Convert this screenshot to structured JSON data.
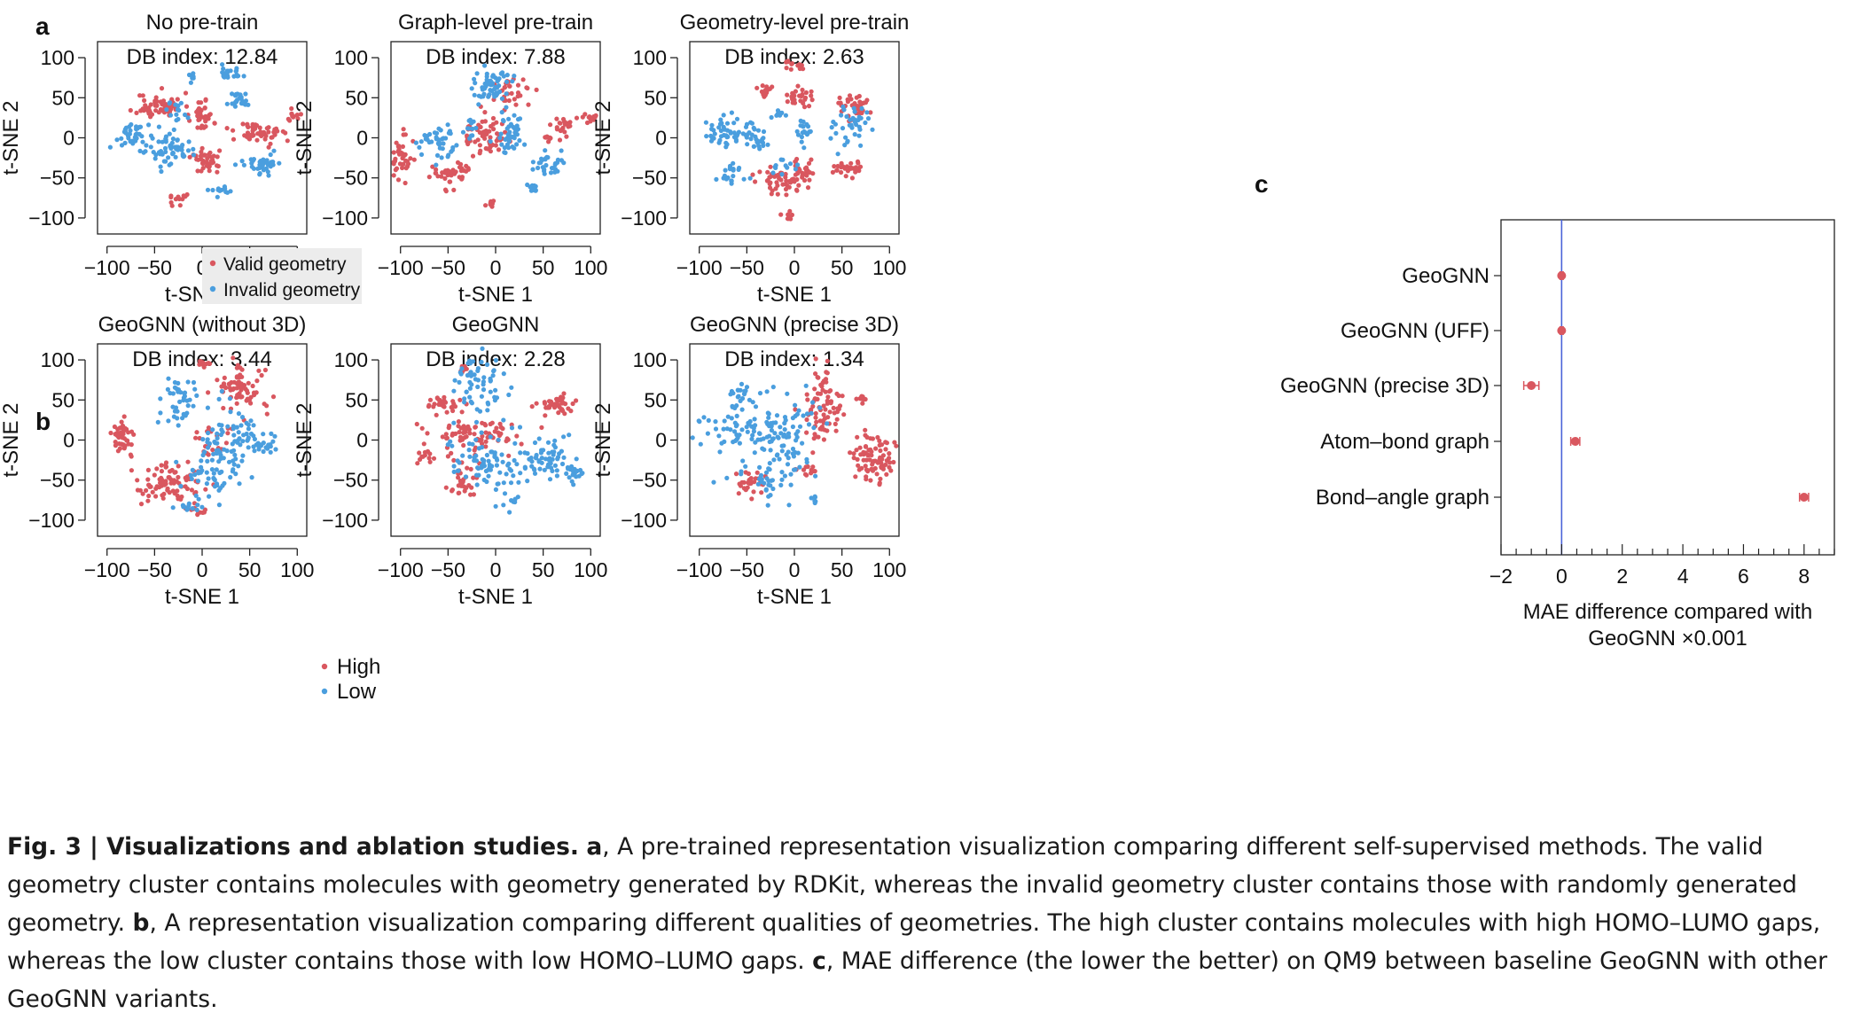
{
  "panel_labels": [
    "a",
    "b",
    "c"
  ],
  "legends": {
    "a": [
      "Valid geometry",
      "Invalid geometry"
    ],
    "b": [
      "High",
      "Low"
    ]
  },
  "colors": {
    "red": "#d9575f",
    "blue": "#4a9ede",
    "zero_line": "#4a63d8",
    "legend_bg": "#ececec"
  },
  "chart_data": [
    {
      "type": "scatter",
      "panel": "a",
      "title": "No pre-train",
      "annotation": "DB index: 12.84",
      "xlabel": "t-SNE 1",
      "ylabel": "t-SNE 2",
      "xlim": [
        -110,
        110
      ],
      "ylim": [
        -120,
        120
      ],
      "xticks": [
        "−100",
        "−50",
        "0",
        "50",
        "100"
      ],
      "yticks": [
        "100",
        "50",
        "0",
        "−50",
        "−100"
      ],
      "legend_position": "bottom-center",
      "seed": 11,
      "clusters": [
        {
          "series": "Valid geometry",
          "cx": -45,
          "cy": 40,
          "sx": 12,
          "sy": 8,
          "n": 60
        },
        {
          "series": "Valid geometry",
          "cx": 0,
          "cy": 28,
          "sx": 6,
          "sy": 10,
          "n": 35
        },
        {
          "series": "Valid geometry",
          "cx": 60,
          "cy": 5,
          "sx": 12,
          "sy": 8,
          "n": 50
        },
        {
          "series": "Valid geometry",
          "cx": 5,
          "cy": -28,
          "sx": 10,
          "sy": 8,
          "n": 40
        },
        {
          "series": "Valid geometry",
          "cx": 97,
          "cy": 30,
          "sx": 4,
          "sy": 4,
          "n": 12
        },
        {
          "series": "Valid geometry",
          "cx": -25,
          "cy": -75,
          "sx": 6,
          "sy": 4,
          "n": 12
        },
        {
          "series": "Invalid geometry",
          "cx": -75,
          "cy": 2,
          "sx": 8,
          "sy": 8,
          "n": 35
        },
        {
          "series": "Invalid geometry",
          "cx": -35,
          "cy": -12,
          "sx": 12,
          "sy": 10,
          "n": 60
        },
        {
          "series": "Invalid geometry",
          "cx": 30,
          "cy": 80,
          "sx": 5,
          "sy": 4,
          "n": 25
        },
        {
          "series": "Invalid geometry",
          "cx": 40,
          "cy": 47,
          "sx": 6,
          "sy": 6,
          "n": 25
        },
        {
          "series": "Invalid geometry",
          "cx": -10,
          "cy": 75,
          "sx": 3,
          "sy": 3,
          "n": 8
        },
        {
          "series": "Invalid geometry",
          "cx": 60,
          "cy": -32,
          "sx": 12,
          "sy": 6,
          "n": 40
        },
        {
          "series": "Invalid geometry",
          "cx": 20,
          "cy": -65,
          "sx": 8,
          "sy": 4,
          "n": 12
        },
        {
          "series": "Invalid geometry",
          "cx": -28,
          "cy": 35,
          "sx": 6,
          "sy": 8,
          "n": 15
        }
      ]
    },
    {
      "type": "scatter",
      "panel": "a",
      "title": "Graph-level pre-train",
      "annotation": "DB index: 7.88",
      "xlabel": "t-SNE 1",
      "ylabel": "t-SNE 2",
      "xlim": [
        -110,
        110
      ],
      "ylim": [
        -120,
        120
      ],
      "xticks": [
        "−100",
        "−50",
        "0",
        "50",
        "100"
      ],
      "yticks": [
        "100",
        "50",
        "0",
        "−50",
        "−100"
      ],
      "seed": 23,
      "clusters": [
        {
          "series": "Valid geometry",
          "cx": 20,
          "cy": 55,
          "sx": 10,
          "sy": 8,
          "n": 30
        },
        {
          "series": "Valid geometry",
          "cx": -15,
          "cy": 2,
          "sx": 12,
          "sy": 12,
          "n": 60
        },
        {
          "series": "Valid geometry",
          "cx": -100,
          "cy": -25,
          "sx": 6,
          "sy": 14,
          "n": 40
        },
        {
          "series": "Valid geometry",
          "cx": -45,
          "cy": -45,
          "sx": 12,
          "sy": 8,
          "n": 40
        },
        {
          "series": "Valid geometry",
          "cx": 70,
          "cy": 15,
          "sx": 5,
          "sy": 6,
          "n": 20
        },
        {
          "series": "Valid geometry",
          "cx": 98,
          "cy": 25,
          "sx": 5,
          "sy": 3,
          "n": 15
        },
        {
          "series": "Valid geometry",
          "cx": 55,
          "cy": 0,
          "sx": 4,
          "sy": 3,
          "n": 8
        },
        {
          "series": "Valid geometry",
          "cx": -5,
          "cy": -82,
          "sx": 3,
          "sy": 3,
          "n": 10
        },
        {
          "series": "Invalid geometry",
          "cx": -5,
          "cy": 65,
          "sx": 10,
          "sy": 12,
          "n": 60
        },
        {
          "series": "Invalid geometry",
          "cx": -60,
          "cy": -5,
          "sx": 8,
          "sy": 12,
          "n": 40
        },
        {
          "series": "Invalid geometry",
          "cx": 15,
          "cy": 5,
          "sx": 10,
          "sy": 12,
          "n": 40
        },
        {
          "series": "Invalid geometry",
          "cx": 55,
          "cy": -35,
          "sx": 8,
          "sy": 8,
          "n": 30
        },
        {
          "series": "Invalid geometry",
          "cx": 40,
          "cy": -62,
          "sx": 4,
          "sy": 4,
          "n": 12
        },
        {
          "series": "Invalid geometry",
          "cx": -30,
          "cy": 15,
          "sx": 4,
          "sy": 8,
          "n": 12
        }
      ]
    },
    {
      "type": "scatter",
      "panel": "a",
      "title": "Geometry-level pre-train",
      "annotation": "DB index: 2.63",
      "xlabel": "t-SNE 1",
      "ylabel": "t-SNE 2",
      "xlim": [
        -110,
        110
      ],
      "ylim": [
        -120,
        120
      ],
      "xticks": [
        "−100",
        "−50",
        "0",
        "50",
        "100"
      ],
      "yticks": [
        "100",
        "50",
        "0",
        "−50",
        "−100"
      ],
      "seed": 37,
      "clusters": [
        {
          "series": "Valid geometry",
          "cx": 0,
          "cy": 90,
          "sx": 6,
          "sy": 3,
          "n": 15
        },
        {
          "series": "Valid geometry",
          "cx": 5,
          "cy": 50,
          "sx": 6,
          "sy": 6,
          "n": 25
        },
        {
          "series": "Valid geometry",
          "cx": -30,
          "cy": 60,
          "sx": 4,
          "sy": 5,
          "n": 15
        },
        {
          "series": "Valid geometry",
          "cx": 65,
          "cy": 40,
          "sx": 10,
          "sy": 8,
          "n": 35
        },
        {
          "series": "Valid geometry",
          "cx": -20,
          "cy": -52,
          "sx": 10,
          "sy": 10,
          "n": 40
        },
        {
          "series": "Valid geometry",
          "cx": 5,
          "cy": -45,
          "sx": 6,
          "sy": 10,
          "n": 35
        },
        {
          "series": "Valid geometry",
          "cx": 55,
          "cy": -38,
          "sx": 8,
          "sy": 6,
          "n": 30
        },
        {
          "series": "Valid geometry",
          "cx": -5,
          "cy": -97,
          "sx": 3,
          "sy": 3,
          "n": 8
        },
        {
          "series": "Invalid geometry",
          "cx": -70,
          "cy": 10,
          "sx": 12,
          "sy": 10,
          "n": 50
        },
        {
          "series": "Invalid geometry",
          "cx": -40,
          "cy": 0,
          "sx": 6,
          "sy": 6,
          "n": 25
        },
        {
          "series": "Invalid geometry",
          "cx": -15,
          "cy": 30,
          "sx": 4,
          "sy": 4,
          "n": 10
        },
        {
          "series": "Invalid geometry",
          "cx": 10,
          "cy": 10,
          "sx": 4,
          "sy": 8,
          "n": 20
        },
        {
          "series": "Invalid geometry",
          "cx": 60,
          "cy": 15,
          "sx": 10,
          "sy": 12,
          "n": 40
        },
        {
          "series": "Invalid geometry",
          "cx": -65,
          "cy": -45,
          "sx": 8,
          "sy": 6,
          "n": 20
        },
        {
          "series": "Invalid geometry",
          "cx": -10,
          "cy": -35,
          "sx": 6,
          "sy": 5,
          "n": 12
        }
      ]
    },
    {
      "type": "scatter",
      "panel": "b",
      "title": "GeoGNN (without 3D)",
      "annotation": "DB index: 3.44",
      "xlabel": "t-SNE 1",
      "ylabel": "t-SNE 2",
      "xlim": [
        -110,
        110
      ],
      "ylim": [
        -120,
        120
      ],
      "xticks": [
        "−100",
        "−50",
        "0",
        "50",
        "100"
      ],
      "yticks": [
        "100",
        "50",
        "0",
        "−50",
        "−100"
      ],
      "legend_position": "bottom-right",
      "seed": 41,
      "clusters": [
        {
          "series": "High",
          "cx": -82,
          "cy": 5,
          "sx": 6,
          "sy": 10,
          "n": 50
        },
        {
          "series": "High",
          "cx": -35,
          "cy": -55,
          "sx": 18,
          "sy": 12,
          "n": 90
        },
        {
          "series": "High",
          "cx": 40,
          "cy": 65,
          "sx": 14,
          "sy": 14,
          "n": 70
        },
        {
          "series": "High",
          "cx": 0,
          "cy": 95,
          "sx": 4,
          "sy": 4,
          "n": 12
        },
        {
          "series": "High",
          "cx": 10,
          "cy": 0,
          "sx": 10,
          "sy": 10,
          "n": 20
        },
        {
          "series": "High",
          "cx": 0,
          "cy": -88,
          "sx": 5,
          "sy": 3,
          "n": 10
        },
        {
          "series": "Low",
          "cx": -25,
          "cy": 50,
          "sx": 12,
          "sy": 18,
          "n": 40
        },
        {
          "series": "Low",
          "cx": 30,
          "cy": 0,
          "sx": 15,
          "sy": 25,
          "n": 70
        },
        {
          "series": "Low",
          "cx": 65,
          "cy": -5,
          "sx": 8,
          "sy": 8,
          "n": 25
        },
        {
          "series": "Low",
          "cx": 5,
          "cy": -40,
          "sx": 15,
          "sy": 20,
          "n": 50
        },
        {
          "series": "Low",
          "cx": -15,
          "cy": -85,
          "sx": 6,
          "sy": 3,
          "n": 12
        }
      ]
    },
    {
      "type": "scatter",
      "panel": "b",
      "title": "GeoGNN",
      "annotation": "DB index: 2.28",
      "xlabel": "t-SNE 1",
      "ylabel": "t-SNE 2",
      "xlim": [
        -110,
        110
      ],
      "ylim": [
        -120,
        120
      ],
      "xticks": [
        "−100",
        "−50",
        "0",
        "50",
        "100"
      ],
      "yticks": [
        "100",
        "50",
        "0",
        "−50",
        "−100"
      ],
      "seed": 53,
      "clusters": [
        {
          "series": "High",
          "cx": 65,
          "cy": 45,
          "sx": 10,
          "sy": 6,
          "n": 45
        },
        {
          "series": "High",
          "cx": -55,
          "cy": 45,
          "sx": 12,
          "sy": 6,
          "n": 30
        },
        {
          "series": "High",
          "cx": -20,
          "cy": 5,
          "sx": 25,
          "sy": 12,
          "n": 80
        },
        {
          "series": "High",
          "cx": -35,
          "cy": -55,
          "sx": 10,
          "sy": 12,
          "n": 30
        },
        {
          "series": "High",
          "cx": -75,
          "cy": -20,
          "sx": 5,
          "sy": 5,
          "n": 12
        },
        {
          "series": "High",
          "cx": -30,
          "cy": 90,
          "sx": 5,
          "sy": 4,
          "n": 8
        },
        {
          "series": "Low",
          "cx": -15,
          "cy": 65,
          "sx": 15,
          "sy": 20,
          "n": 60
        },
        {
          "series": "Low",
          "cx": 0,
          "cy": -30,
          "sx": 25,
          "sy": 20,
          "n": 90
        },
        {
          "series": "Low",
          "cx": 55,
          "cy": -25,
          "sx": 12,
          "sy": 12,
          "n": 50
        },
        {
          "series": "Low",
          "cx": 82,
          "cy": -40,
          "sx": 5,
          "sy": 6,
          "n": 20
        },
        {
          "series": "Low",
          "cx": 20,
          "cy": -75,
          "sx": 4,
          "sy": 3,
          "n": 6
        }
      ]
    },
    {
      "type": "scatter",
      "panel": "b",
      "title": "GeoGNN (precise 3D)",
      "annotation": "DB index: 1.34",
      "xlabel": "t-SNE 1",
      "ylabel": "t-SNE 2",
      "xlim": [
        -110,
        110
      ],
      "ylim": [
        -120,
        120
      ],
      "xticks": [
        "−100",
        "−50",
        "0",
        "50",
        "100"
      ],
      "yticks": [
        "100",
        "50",
        "0",
        "−50",
        "−100"
      ],
      "seed": 67,
      "clusters": [
        {
          "series": "High",
          "cx": 30,
          "cy": 35,
          "sx": 10,
          "sy": 25,
          "n": 80
        },
        {
          "series": "High",
          "cx": 80,
          "cy": -25,
          "sx": 10,
          "sy": 14,
          "n": 80
        },
        {
          "series": "High",
          "cx": -45,
          "cy": -55,
          "sx": 8,
          "sy": 10,
          "n": 30
        },
        {
          "series": "High",
          "cx": 70,
          "cy": 50,
          "sx": 4,
          "sy": 3,
          "n": 10
        },
        {
          "series": "High",
          "cx": 10,
          "cy": -40,
          "sx": 6,
          "sy": 6,
          "n": 12
        },
        {
          "series": "Low",
          "cx": -55,
          "cy": 15,
          "sx": 20,
          "sy": 20,
          "n": 80
        },
        {
          "series": "Low",
          "cx": -5,
          "cy": 0,
          "sx": 15,
          "sy": 25,
          "n": 70
        },
        {
          "series": "Low",
          "cx": -55,
          "cy": 60,
          "sx": 6,
          "sy": 6,
          "n": 15
        },
        {
          "series": "Low",
          "cx": -30,
          "cy": -50,
          "sx": 12,
          "sy": 12,
          "n": 30
        },
        {
          "series": "Low",
          "cx": 20,
          "cy": -75,
          "sx": 3,
          "sy": 3,
          "n": 6
        }
      ]
    },
    {
      "type": "dot-errorbar",
      "panel": "c",
      "categories": [
        "GeoGNN",
        "GeoGNN (UFF)",
        "GeoGNN (precise 3D)",
        "Atom–bond graph",
        "Bond–angle graph"
      ],
      "values": [
        0,
        0,
        -1.0,
        0.45,
        8.0
      ],
      "errors": [
        0.05,
        0.05,
        0.25,
        0.15,
        0.15
      ],
      "xlabel": "MAE difference compared with GeoGNN  ×0.001",
      "xlabel_lines": [
        "MAE difference compared with",
        "GeoGNN  ×0.001"
      ],
      "xlim": [
        -2,
        9
      ],
      "xticks": [
        "−2",
        "0",
        "2",
        "4",
        "6",
        "8"
      ],
      "reference_line": 0
    }
  ],
  "caption": {
    "title": "Fig. 3 | Visualizations and ablation studies.",
    "a_label": "a",
    "a_text": ", A pre-trained representation visualization comparing different self-supervised methods. The valid geometry cluster contains molecules with geometry generated by RDKit, whereas the invalid geometry cluster contains those with randomly generated geometry.",
    "b_label": "b",
    "b_text": ", A representation visualization comparing different qualities of geometries. The high cluster contains molecules with high HOMO–LUMO gaps, whereas the low cluster contains those with low HOMO–LUMO gaps.",
    "c_label": "c",
    "c_text": ", MAE difference (the lower the better) on QM9 between baseline GeoGNN with other GeoGNN variants."
  }
}
